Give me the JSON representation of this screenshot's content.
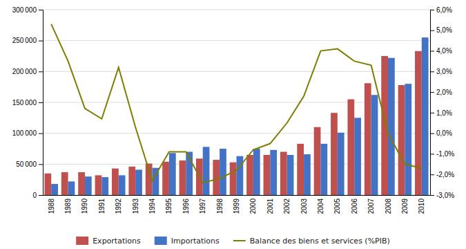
{
  "chart_data": {
    "type": "bar",
    "categories": [
      "1988",
      "1989",
      "1990",
      "1991",
      "1992",
      "1993",
      "1994",
      "1995",
      "1996",
      "1997",
      "1998",
      "1999",
      "2000",
      "2001",
      "2002",
      "2003",
      "2004",
      "2005",
      "2006",
      "2007",
      "2008",
      "2009",
      "2010"
    ],
    "series": [
      {
        "name": "Exportations",
        "color": "#C0504D",
        "values": [
          35000,
          37000,
          37000,
          32000,
          43000,
          46000,
          51000,
          54000,
          56000,
          59000,
          57000,
          53000,
          65000,
          65000,
          70000,
          83000,
          110000,
          133000,
          155000,
          181000,
          225000,
          178000,
          233000
        ]
      },
      {
        "name": "Importations",
        "color": "#4472C4",
        "values": [
          18000,
          22000,
          30000,
          29000,
          32000,
          41000,
          44000,
          68000,
          70000,
          78000,
          75000,
          63000,
          75000,
          73000,
          65000,
          66000,
          83000,
          101000,
          125000,
          162000,
          222000,
          180000,
          255000
        ]
      },
      {
        "name": "Balance des biens et services (%PIB)",
        "color": "#7D7D00",
        "type": "line",
        "axis": "y2",
        "values": [
          5.3,
          3.5,
          1.2,
          0.7,
          3.2,
          0.3,
          -2.3,
          -0.9,
          -0.9,
          -2.4,
          -2.2,
          -1.8,
          -0.8,
          -0.5,
          0.5,
          1.8,
          4.0,
          4.1,
          3.5,
          3.3,
          0.0,
          -1.5,
          -1.7
        ]
      }
    ],
    "ylim": [
      0,
      300000
    ],
    "yticks": [
      0,
      {
        "value": 50000,
        "label": "50 000"
      },
      {
        "value": 100000,
        "label": "100 000"
      },
      {
        "value": 150000,
        "label": "150 000"
      },
      {
        "value": 200000,
        "label": "200 000"
      },
      {
        "value": 250000,
        "label": "250 000"
      },
      {
        "value": 300000,
        "label": "300 000"
      }
    ],
    "y2lim": [
      -3.0,
      6.0
    ],
    "y2ticks": [
      {
        "value": -3.0,
        "label": "-3,0%"
      },
      {
        "value": -2.0,
        "label": "-2,0%"
      },
      {
        "value": -1.0,
        "label": "-1,0%"
      },
      {
        "value": 0.0,
        "label": "0,0%"
      },
      {
        "value": 1.0,
        "label": "1,0%"
      },
      {
        "value": 2.0,
        "label": "2,0%"
      },
      {
        "value": 3.0,
        "label": "3,0%"
      },
      {
        "value": 4.0,
        "label": "4,0%"
      },
      {
        "value": 5.0,
        "label": "5,0%"
      },
      {
        "value": 6.0,
        "label": "6,0%"
      }
    ],
    "grid": true,
    "legend": "bottom"
  }
}
